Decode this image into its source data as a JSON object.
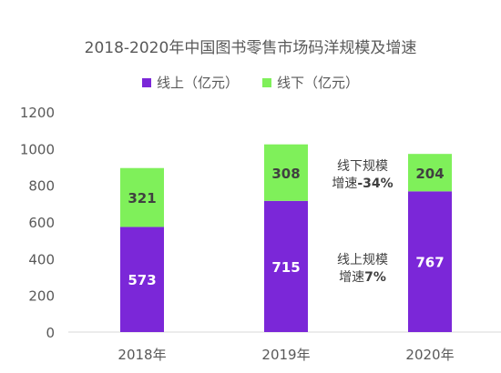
{
  "chart_data": {
    "type": "bar",
    "stacked": true,
    "title": "2018-2020年中国图书零售市场码洋规模及增速",
    "categories": [
      "2018年",
      "2019年",
      "2020年"
    ],
    "series": [
      {
        "name": "线上（亿元）",
        "values": [
          573,
          715,
          767
        ],
        "color": "#7B27D8"
      },
      {
        "name": "线下（亿元）",
        "values": [
          321,
          308,
          204
        ],
        "color": "#7FF05A"
      }
    ],
    "ylim": [
      0,
      1200
    ],
    "yticks": [
      0,
      200,
      400,
      600,
      800,
      1000,
      1200
    ],
    "ytick_labels": [
      "0",
      "200",
      "400",
      "600",
      "800",
      "1000",
      "1200"
    ],
    "grid": false,
    "legend_position": "top",
    "annotations": {
      "offline": {
        "line1": "线下规模",
        "line2_prefix": "增速",
        "line2_value": "-34%"
      },
      "online": {
        "line1": "线上规模",
        "line2_prefix": "增速",
        "line2_value": "7%"
      }
    }
  }
}
